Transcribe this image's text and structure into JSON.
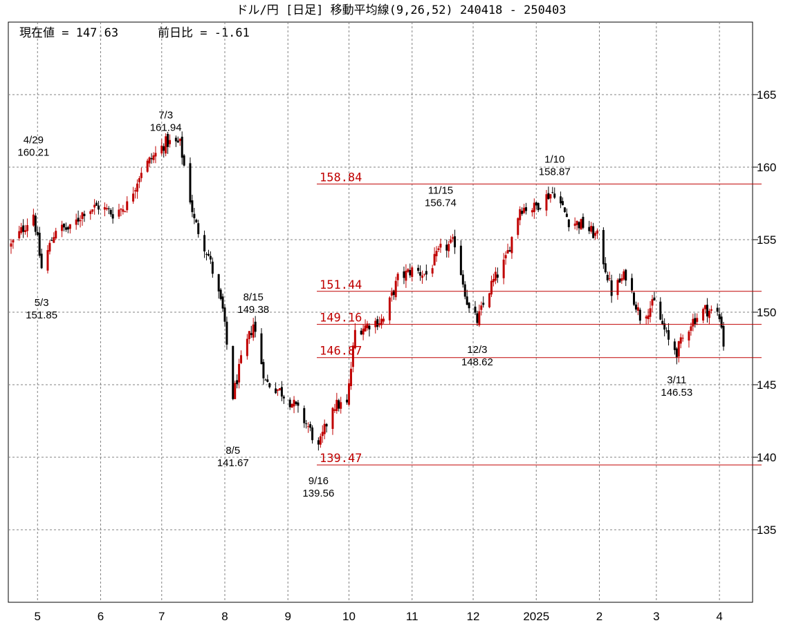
{
  "title": "ドル/円 [日足] 移動平均線(9,26,52)  240418 - 250403",
  "current_value_text": "現在値 = 147.63",
  "prev_day_diff_text": "前日比 = -1.61",
  "colors": {
    "up": "#c00000",
    "down": "#000000",
    "line": "#c00000",
    "grid": "#808080"
  },
  "chart_data": {
    "type": "candlestick",
    "title": "ドル/円 [日足] 移動平均線(9,26,52)  240418 - 250403",
    "ylim": [
      130,
      170
    ],
    "y_ticks": [
      135,
      140,
      145,
      150,
      155,
      160,
      165
    ],
    "x_ticks": [
      "5",
      "6",
      "7",
      "8",
      "9",
      "10",
      "11",
      "12",
      "2025",
      "2",
      "3",
      "4"
    ],
    "grid": true,
    "date_range": [
      "2024-04-18",
      "2025-04-03"
    ],
    "closes": [
      [
        "2024-04-18",
        154.6
      ],
      [
        "2024-04-29",
        156.8
      ],
      [
        "2024-05-03",
        153.0
      ],
      [
        "2024-05-10",
        155.8
      ],
      [
        "2024-05-17",
        155.7
      ],
      [
        "2024-05-24",
        157.0
      ],
      [
        "2024-05-31",
        157.3
      ],
      [
        "2024-06-07",
        156.8
      ],
      [
        "2024-06-14",
        157.4
      ],
      [
        "2024-06-21",
        159.8
      ],
      [
        "2024-06-28",
        160.9
      ],
      [
        "2024-07-03",
        161.7
      ],
      [
        "2024-07-10",
        161.6
      ],
      [
        "2024-07-17",
        156.3
      ],
      [
        "2024-07-24",
        153.9
      ],
      [
        "2024-07-31",
        150.1
      ],
      [
        "2024-08-05",
        144.2
      ],
      [
        "2024-08-09",
        146.6
      ],
      [
        "2024-08-15",
        149.2
      ],
      [
        "2024-08-21",
        145.2
      ],
      [
        "2024-08-28",
        144.6
      ],
      [
        "2024-09-04",
        143.6
      ],
      [
        "2024-09-11",
        142.1
      ],
      [
        "2024-09-16",
        140.6
      ],
      [
        "2024-09-23",
        143.6
      ],
      [
        "2024-09-30",
        143.6
      ],
      [
        "2024-10-04",
        148.7
      ],
      [
        "2024-10-11",
        149.2
      ],
      [
        "2024-10-18",
        149.5
      ],
      [
        "2024-10-25",
        152.3
      ],
      [
        "2024-11-01",
        152.9
      ],
      [
        "2024-11-08",
        152.6
      ],
      [
        "2024-11-15",
        154.3
      ],
      [
        "2024-11-22",
        154.8
      ],
      [
        "2024-11-29",
        150.1
      ],
      [
        "2024-12-03",
        149.4
      ],
      [
        "2024-12-10",
        151.9
      ],
      [
        "2024-12-17",
        153.6
      ],
      [
        "2024-12-24",
        157.2
      ],
      [
        "2024-12-31",
        157.2
      ],
      [
        "2025-01-07",
        158.1
      ],
      [
        "2025-01-10",
        158.3
      ],
      [
        "2025-01-17",
        156.3
      ],
      [
        "2025-01-24",
        156.0
      ],
      [
        "2025-01-31",
        155.2
      ],
      [
        "2025-02-07",
        151.4
      ],
      [
        "2025-02-14",
        152.6
      ],
      [
        "2025-02-21",
        149.7
      ],
      [
        "2025-02-28",
        150.6
      ],
      [
        "2025-03-07",
        148.0
      ],
      [
        "2025-03-11",
        147.3
      ],
      [
        "2025-03-18",
        149.3
      ],
      [
        "2025-03-25",
        150.2
      ],
      [
        "2025-03-31",
        149.9
      ],
      [
        "2025-04-02",
        149.2
      ],
      [
        "2025-04-03",
        147.63
      ]
    ],
    "support_resistance": [
      {
        "label": "158.84",
        "value": 158.84
      },
      {
        "label": "151.44",
        "value": 151.44
      },
      {
        "label": "149.16",
        "value": 149.16
      },
      {
        "label": "146.87",
        "value": 146.87
      },
      {
        "label": "139.47",
        "value": 139.47
      }
    ],
    "annotations": [
      {
        "date_label": "4/29",
        "price_label": "160.21",
        "date": "2024-04-29",
        "value": 160.21,
        "pos": "above"
      },
      {
        "date_label": "5/3",
        "price_label": "151.85",
        "date": "2024-05-03",
        "value": 151.85,
        "pos": "below"
      },
      {
        "date_label": "7/3",
        "price_label": "161.94",
        "date": "2024-07-03",
        "value": 161.94,
        "pos": "above"
      },
      {
        "date_label": "8/5",
        "price_label": "141.67",
        "date": "2024-08-05",
        "value": 141.67,
        "pos": "below"
      },
      {
        "date_label": "8/15",
        "price_label": "149.38",
        "date": "2024-08-15",
        "value": 149.38,
        "pos": "above"
      },
      {
        "date_label": "9/16",
        "price_label": "139.56",
        "date": "2024-09-16",
        "value": 139.56,
        "pos": "below"
      },
      {
        "date_label": "11/15",
        "price_label": "156.74",
        "date": "2024-11-15",
        "value": 156.74,
        "pos": "above"
      },
      {
        "date_label": "12/3",
        "price_label": "148.62",
        "date": "2024-12-03",
        "value": 148.62,
        "pos": "below"
      },
      {
        "date_label": "1/10",
        "price_label": "158.87",
        "date": "2025-01-10",
        "value": 158.87,
        "pos": "above"
      },
      {
        "date_label": "3/11",
        "price_label": "146.53",
        "date": "2025-03-11",
        "value": 146.53,
        "pos": "below"
      }
    ]
  }
}
